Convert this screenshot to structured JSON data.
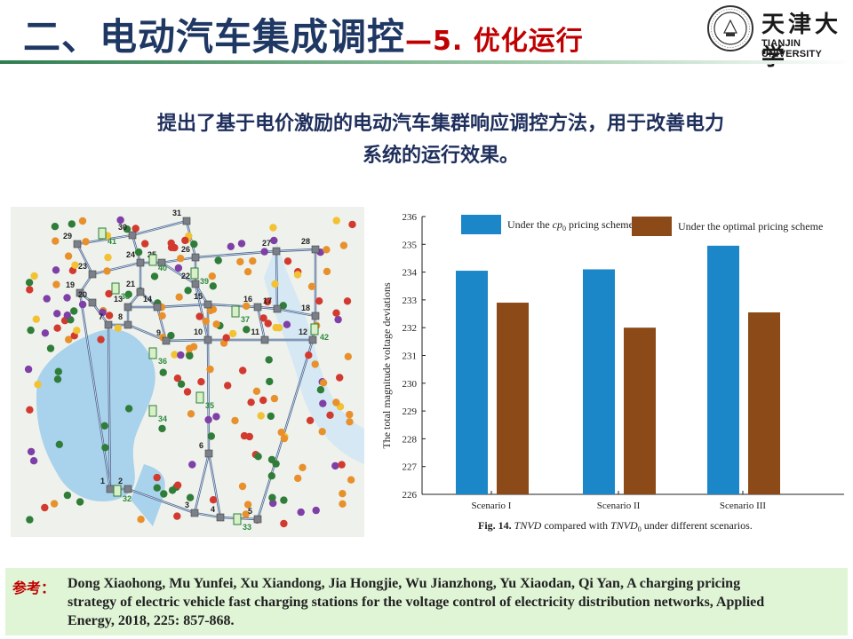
{
  "header": {
    "title_main": "二、电动汽车集成调控",
    "title_sub": "—5. 优化运行",
    "logo_cn": "天津大学",
    "logo_en": "TIANJIN UNIVERSITY"
  },
  "headline": {
    "line1": "提出了基于电价激励的电动汽车集群响应调控方法，用于改善电力",
    "line2": "系统的运行效果。"
  },
  "map": {
    "node_labels": [
      "1",
      "2",
      "3",
      "4",
      "5",
      "6",
      "7",
      "8",
      "9",
      "10",
      "11",
      "12",
      "13",
      "14",
      "15",
      "16",
      "17",
      "18",
      "19",
      "20",
      "21",
      "22",
      "23",
      "24",
      "25",
      "26",
      "27",
      "28",
      "29",
      "30",
      "31"
    ],
    "station_labels": [
      "32",
      "33",
      "34",
      "35",
      "36",
      "37",
      "38",
      "39",
      "40",
      "41",
      "42"
    ]
  },
  "chart_data": {
    "type": "bar",
    "categories": [
      "Scenario I",
      "Scenario II",
      "Scenario III"
    ],
    "series": [
      {
        "name": "Under the cp0 pricing scheme",
        "values": [
          234.05,
          234.1,
          234.95
        ],
        "color": "#1b87c9"
      },
      {
        "name": "Under the optimal pricing scheme",
        "values": [
          232.9,
          232.0,
          232.55
        ],
        "color": "#8b4a17"
      }
    ],
    "ylabel": "The total magnitude voltage deviations",
    "ylim": [
      226,
      236
    ],
    "yticks": [
      "226",
      "227",
      "228",
      "229",
      "230",
      "231",
      "232",
      "233",
      "234",
      "235",
      "236"
    ],
    "caption": "Fig. 14. TNVD compared with TNVD0 under different scenarios.",
    "legend_position": "top"
  },
  "reference": {
    "label": "参考：",
    "line1": "Dong Xiaohong, Mu Yunfei, Xu Xiandong, Jia Hongjie, Wu Jianzhong, Yu Xiaodan, Qi Yan, A charging pricing",
    "line2": "strategy of electric vehicle fast charging stations for the voltage control of electricity distribution networks, Applied",
    "line3": "Energy, 2018, 225: 857-868."
  }
}
